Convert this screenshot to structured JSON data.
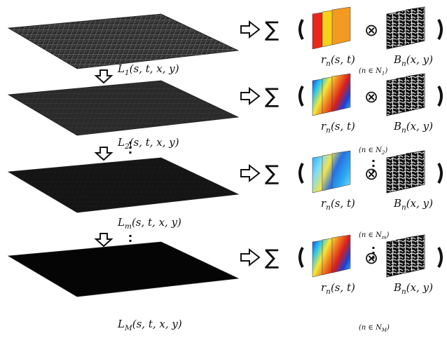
{
  "rows": [
    {
      "layer": {
        "symbol": "L",
        "sub": "1",
        "args": "(s, t, x, y)",
        "brightness": "bright"
      },
      "operator": "∑",
      "coef": {
        "symbol": "r",
        "sub": "n",
        "args": "(s, t)",
        "colormap": "warm"
      },
      "otimes": "⊗",
      "basis": {
        "symbol": "B",
        "sub": "n",
        "args": "(x, y)"
      },
      "index": {
        "prefix": "(n ∈ ",
        "set": "N",
        "sub": "1",
        "suffix": ")"
      }
    },
    {
      "layer": {
        "symbol": "L",
        "sub": "2",
        "args": "(s, t, x, y)",
        "brightness": "dim"
      },
      "operator": "∑",
      "coef": {
        "symbol": "r",
        "sub": "n",
        "args": "(s, t)",
        "colormap": "jet"
      },
      "otimes": "⊗",
      "basis": {
        "symbol": "B",
        "sub": "n",
        "args": "(x, y)"
      },
      "index": {
        "prefix": "(n ∈ ",
        "set": "N",
        "sub": "2",
        "suffix": ")"
      }
    },
    {
      "layer": {
        "symbol": "L",
        "sub": "m",
        "args": "(s, t, x, y)",
        "brightness": "dark"
      },
      "operator": "∑",
      "coef": {
        "symbol": "r",
        "sub": "n",
        "args": "(s, t)",
        "colormap": "cool"
      },
      "otimes": "⊗",
      "basis": {
        "symbol": "B",
        "sub": "n",
        "args": "(x, y)"
      },
      "index": {
        "prefix": "(n ∈ ",
        "set": "N",
        "sub": "m",
        "suffix": ")"
      }
    },
    {
      "layer": {
        "symbol": "L",
        "sub": "M",
        "args": "(s, t, x, y)",
        "brightness": "black"
      },
      "operator": "∑",
      "coef": {
        "symbol": "r",
        "sub": "n",
        "args": "(s, t)",
        "colormap": "jet"
      },
      "otimes": "⊗",
      "basis": {
        "symbol": "B",
        "sub": "n",
        "args": "(x, y)"
      },
      "index": {
        "prefix": "(n ∈ ",
        "set": "N",
        "sub": "M",
        "suffix": ")"
      }
    }
  ],
  "colors": {
    "bright_layer": "#3a3a3a",
    "dim_layer": "#2b2b2b",
    "dark_layer": "#141414",
    "black_layer": "#050505",
    "warm": [
      "#e8281c",
      "#f6d21a",
      "#f39a22"
    ],
    "jet": [
      "#1e3fd8",
      "#26c4f0",
      "#f4e83a",
      "#f07a1f",
      "#d81e1e"
    ],
    "cool": [
      "#2aa9f2",
      "#7fdcf7",
      "#f2e24a",
      "#2a6fe0"
    ]
  }
}
